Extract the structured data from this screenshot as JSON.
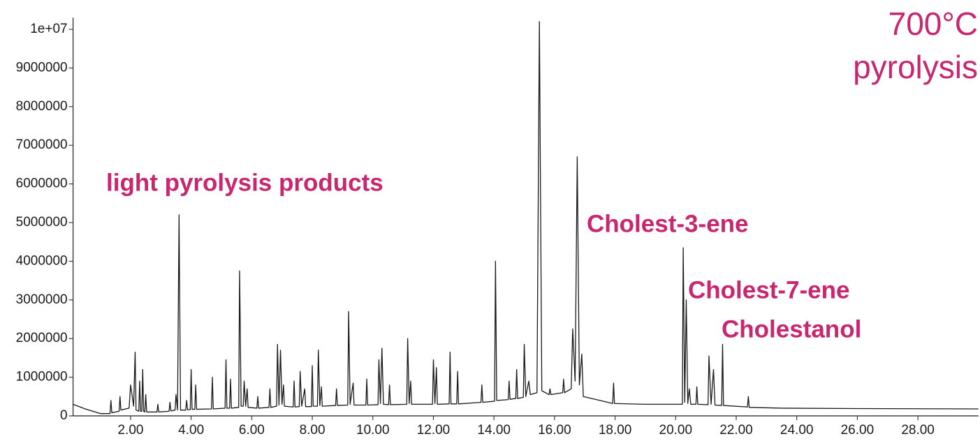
{
  "chart_data": {
    "type": "line",
    "title_lines": [
      "700°C",
      "pyrolysis"
    ],
    "annotations": [
      "light pyrolysis products",
      "Cholest-3-ene",
      "Cholest-7-ene",
      "Cholestanol"
    ],
    "color": "#1a1a1a",
    "label_color": "#c8266e",
    "xlim": [
      0.1,
      30
    ],
    "ylim": [
      0,
      10300000
    ],
    "xticks": [
      {
        "value": 2,
        "label": "2.00"
      },
      {
        "value": 4,
        "label": "4.00"
      },
      {
        "value": 6,
        "label": "6.00"
      },
      {
        "value": 8,
        "label": "8.00"
      },
      {
        "value": 10,
        "label": "10.00"
      },
      {
        "value": 12,
        "label": "12.00"
      },
      {
        "value": 14,
        "label": "14.00"
      },
      {
        "value": 16,
        "label": "16.00"
      },
      {
        "value": 18,
        "label": "18.00"
      },
      {
        "value": 20,
        "label": "20.00"
      },
      {
        "value": 22,
        "label": "22.00"
      },
      {
        "value": 24,
        "label": "24.00"
      },
      {
        "value": 26,
        "label": "26.00"
      },
      {
        "value": 28,
        "label": "28.00"
      }
    ],
    "yticks": [
      0,
      1000000,
      2000000,
      3000000,
      4000000,
      5000000,
      6000000,
      7000000,
      8000000,
      9000000,
      {
        "value": 10000000,
        "label": "1e+07"
      }
    ],
    "x": [
      0.1,
      0.5,
      1.0,
      1.32,
      1.35,
      1.38,
      1.62,
      1.65,
      1.68,
      1.95,
      2.0,
      2.1,
      2.15,
      2.18,
      2.27,
      2.3,
      2.33,
      2.37,
      2.4,
      2.43,
      2.47,
      2.5,
      2.53,
      2.87,
      2.9,
      2.93,
      3.27,
      3.3,
      3.33,
      3.47,
      3.5,
      3.55,
      3.6,
      3.65,
      3.82,
      3.85,
      3.88,
      3.97,
      4.0,
      4.03,
      4.12,
      4.15,
      4.18,
      4.67,
      4.7,
      4.73,
      5.12,
      5.15,
      5.18,
      5.27,
      5.3,
      5.33,
      5.57,
      5.6,
      5.65,
      5.72,
      5.75,
      5.8,
      5.85,
      5.88,
      6.17,
      6.2,
      6.23,
      6.57,
      6.6,
      6.63,
      6.82,
      6.85,
      6.9,
      6.95,
      7.0,
      7.05,
      7.08,
      7.37,
      7.4,
      7.43,
      7.57,
      7.6,
      7.65,
      7.75,
      7.78,
      7.97,
      8.0,
      8.03,
      8.17,
      8.2,
      8.25,
      8.3,
      8.33,
      8.77,
      8.8,
      8.83,
      9.17,
      9.2,
      9.25,
      9.35,
      9.38,
      9.77,
      9.8,
      9.83,
      10.17,
      10.2,
      10.25,
      10.3,
      10.35,
      10.52,
      10.55,
      10.58,
      11.12,
      11.15,
      11.2,
      11.25,
      11.28,
      11.97,
      12.0,
      12.05,
      12.1,
      12.13,
      12.52,
      12.55,
      12.58,
      12.77,
      12.8,
      12.83,
      13.57,
      13.6,
      13.63,
      14.02,
      14.05,
      14.09,
      14.47,
      14.5,
      14.53,
      14.72,
      14.75,
      14.78,
      14.97,
      15.0,
      15.05,
      15.15,
      15.2,
      15.42,
      15.5,
      15.58,
      15.82,
      15.85,
      15.88,
      16.27,
      16.3,
      16.33,
      16.55,
      16.6,
      16.68,
      16.75,
      16.82,
      16.9,
      16.95,
      17.5,
      17.92,
      17.95,
      17.98,
      19.0,
      20.0,
      20.22,
      20.25,
      20.3,
      20.35,
      20.4,
      20.45,
      20.5,
      20.67,
      20.7,
      20.73,
      21.07,
      21.1,
      21.17,
      21.25,
      21.3,
      21.52,
      21.55,
      21.58,
      22.37,
      22.4,
      22.43,
      23.5,
      26.0,
      30.0
    ],
    "values": [
      300000,
      180000,
      60000,
      60000,
      400000,
      80000,
      120000,
      500000,
      150000,
      200000,
      800000,
      250000,
      1650000,
      150000,
      120000,
      900000,
      120000,
      120000,
      1200000,
      120000,
      100000,
      550000,
      100000,
      100000,
      300000,
      100000,
      120000,
      350000,
      130000,
      150000,
      550000,
      150000,
      5200000,
      150000,
      150000,
      400000,
      160000,
      160000,
      1200000,
      170000,
      170000,
      800000,
      170000,
      180000,
      1000000,
      180000,
      200000,
      1450000,
      200000,
      200000,
      950000,
      200000,
      220000,
      3750000,
      250000,
      250000,
      900000,
      250000,
      700000,
      220000,
      200000,
      500000,
      200000,
      220000,
      700000,
      220000,
      250000,
      1850000,
      280000,
      1700000,
      300000,
      800000,
      250000,
      230000,
      900000,
      230000,
      240000,
      1150000,
      250000,
      700000,
      240000,
      240000,
      1300000,
      250000,
      250000,
      1700000,
      270000,
      750000,
      250000,
      270000,
      700000,
      270000,
      280000,
      2700000,
      300000,
      850000,
      280000,
      280000,
      950000,
      280000,
      290000,
      1450000,
      320000,
      1750000,
      300000,
      290000,
      800000,
      290000,
      300000,
      2000000,
      320000,
      900000,
      300000,
      300000,
      1450000,
      320000,
      1250000,
      300000,
      310000,
      1650000,
      310000,
      310000,
      1150000,
      310000,
      350000,
      800000,
      350000,
      380000,
      4000000,
      400000,
      420000,
      900000,
      430000,
      450000,
      1200000,
      450000,
      480000,
      1850000,
      500000,
      900000,
      550000,
      600000,
      10200000,
      650000,
      550000,
      700000,
      550000,
      600000,
      950000,
      600000,
      700000,
      2250000,
      900000,
      6700000,
      800000,
      1600000,
      500000,
      400000,
      320000,
      850000,
      320000,
      300000,
      300000,
      300000,
      4350000,
      350000,
      3000000,
      320000,
      700000,
      300000,
      300000,
      750000,
      300000,
      290000,
      1550000,
      300000,
      1200000,
      280000,
      270000,
      1850000,
      270000,
      230000,
      500000,
      220000,
      200000,
      190000,
      180000
    ]
  }
}
